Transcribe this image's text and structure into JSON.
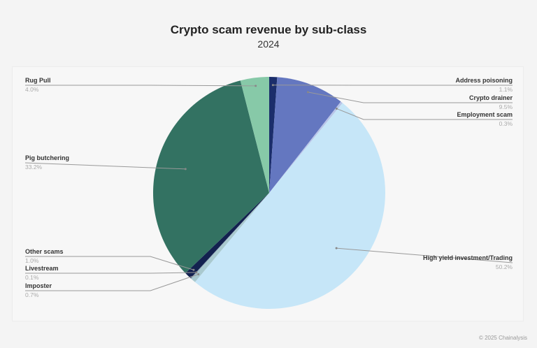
{
  "chart_data": {
    "type": "pie",
    "title": "Crypto scam revenue by sub-class",
    "subtitle": "2024",
    "start_angle_deg": 0,
    "direction": "clockwise",
    "slices": [
      {
        "label": "Address poisoning",
        "value": 1.1,
        "display": "1.1%",
        "color": "#1b2e6b"
      },
      {
        "label": "Crypto drainer",
        "value": 9.5,
        "display": "9.5%",
        "color": "#6477c0"
      },
      {
        "label": "Employment scam",
        "value": 0.3,
        "display": "0.3%",
        "color": "#b8c4e8"
      },
      {
        "label": "High yield investment/Trading",
        "value": 50.2,
        "display": "50.2%",
        "color": "#c6e6f8"
      },
      {
        "label": "Imposter",
        "value": 0.7,
        "display": "0.7%",
        "color": "#a9c9cf"
      },
      {
        "label": "Livestream",
        "value": 0.1,
        "display": "0.1%",
        "color": "#8aa0b0"
      },
      {
        "label": "Other scams",
        "value": 1.0,
        "display": "1.0%",
        "color": "#13214f"
      },
      {
        "label": "Pig butchering",
        "value": 33.2,
        "display": "33.2%",
        "color": "#337262"
      },
      {
        "label": "Rug Pull",
        "value": 4.0,
        "display": "4.0%",
        "color": "#87c9a8"
      }
    ],
    "legend": "none"
  },
  "footer": "© 2025 Chainalysis"
}
